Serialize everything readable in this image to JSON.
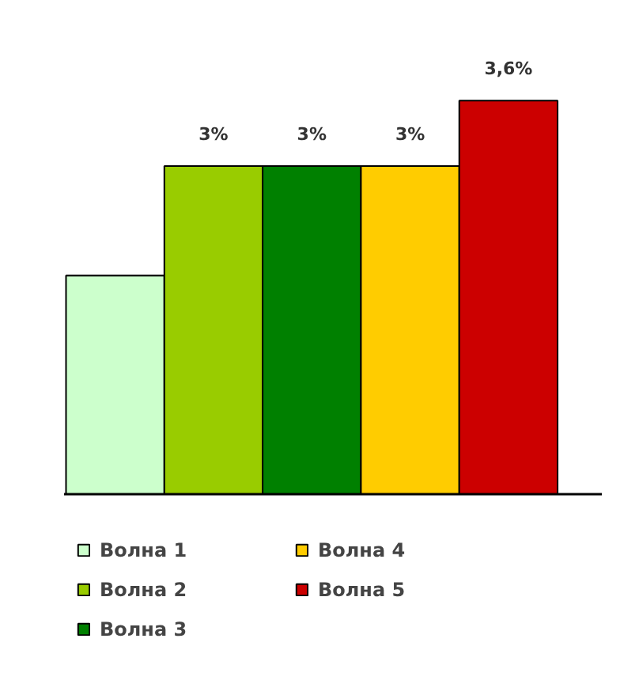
{
  "chart_data": {
    "type": "bar",
    "categories": [
      null
    ],
    "series": [
      {
        "name": "Волна 1",
        "color": "#ccffcc",
        "values": [
          2
        ],
        "value_labels": [
          null
        ]
      },
      {
        "name": "Волна 2",
        "color": "#99cc00",
        "values": [
          3
        ],
        "value_labels": [
          "3%"
        ]
      },
      {
        "name": "Волна 3",
        "color": "#008000",
        "values": [
          3
        ],
        "value_labels": [
          "3%"
        ]
      },
      {
        "name": "Волна 4",
        "color": "#ffcc00",
        "values": [
          3
        ],
        "value_labels": [
          "3%"
        ]
      },
      {
        "name": "Волна 5",
        "color": "#cc0000",
        "values": [
          3.6
        ],
        "value_labels": [
          "3,6%"
        ]
      }
    ],
    "legend": "bottom"
  }
}
